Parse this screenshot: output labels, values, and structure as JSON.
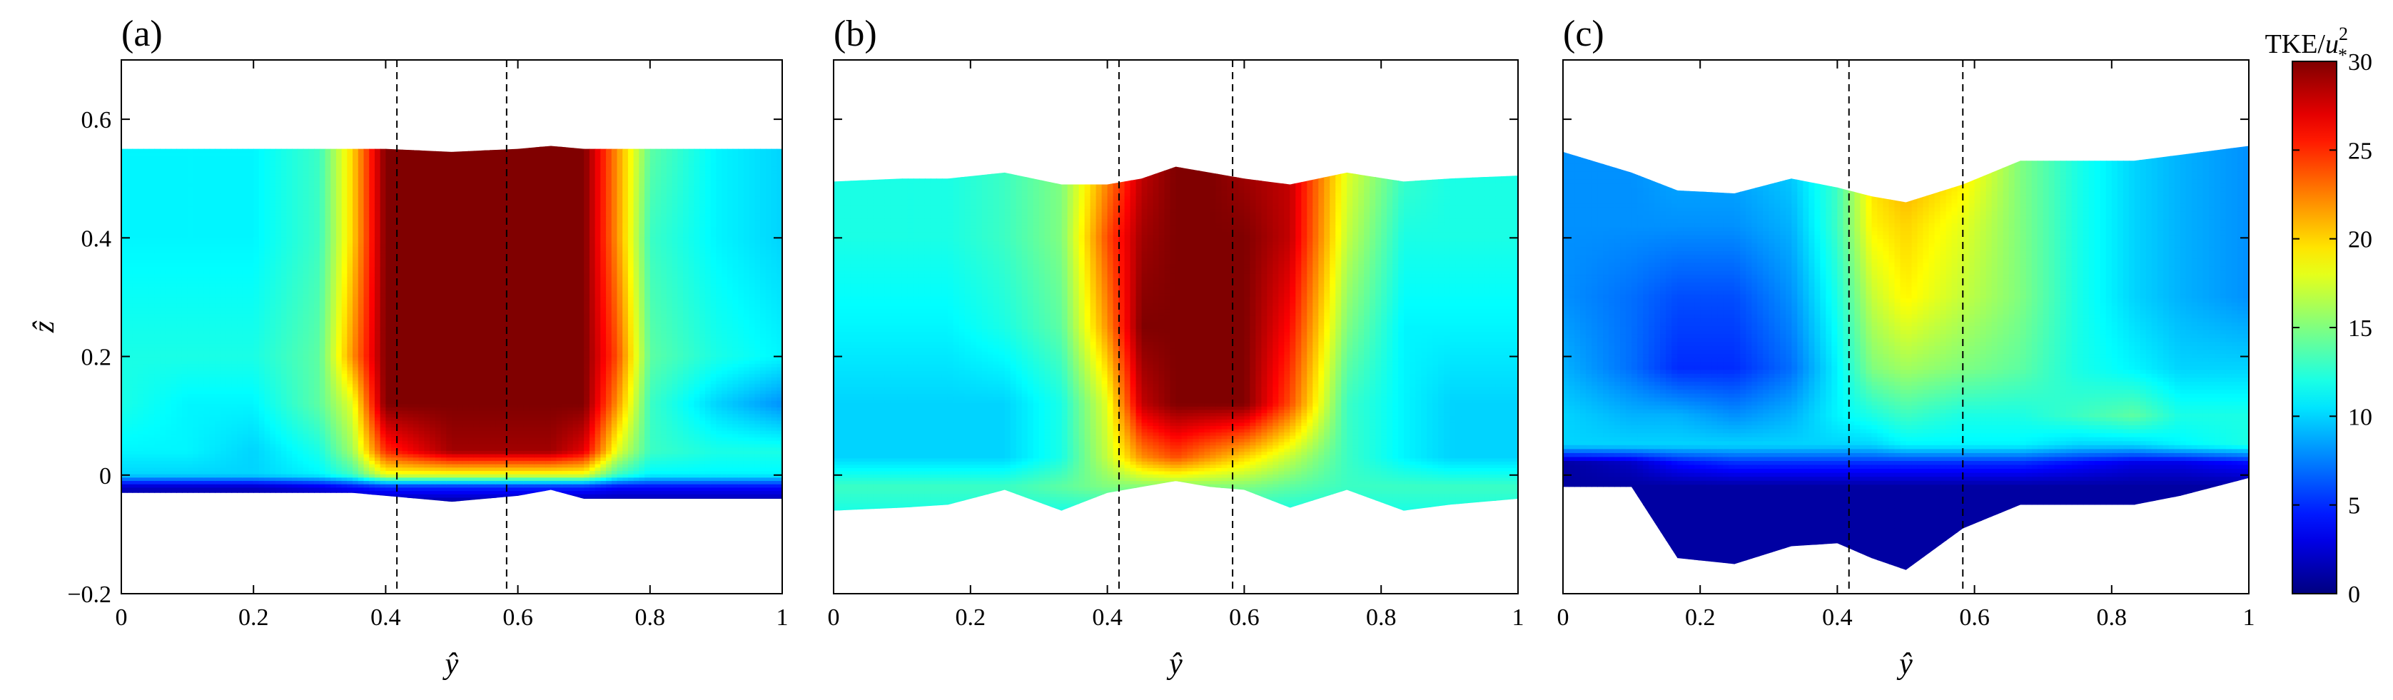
{
  "colorbar": {
    "label": "TKE/",
    "label_var": "u",
    "label_sup": "2",
    "label_sub": "*",
    "min": 0,
    "max": 30,
    "ticks": [
      "0",
      "5",
      "10",
      "15",
      "20",
      "25",
      "30"
    ]
  },
  "chart_data": [
    {
      "type": "heatmap",
      "panel": "(a)",
      "xlabel": "ŷ",
      "ylabel": "ẑ",
      "xlim": [
        0,
        1
      ],
      "ylim": [
        -0.2,
        0.7
      ],
      "xticks": [
        "0",
        "0.2",
        "0.4",
        "0.6",
        "0.8",
        "1"
      ],
      "yticks": [
        "−0.2",
        "0",
        "0.2",
        "0.4",
        "0.6"
      ],
      "dashed_lines_x": [
        0.417,
        0.583
      ],
      "x": [
        0,
        0.1,
        0.2,
        0.3,
        0.35,
        0.4,
        0.5,
        0.6,
        0.65,
        0.7,
        0.75,
        0.8,
        0.9,
        1.0
      ],
      "top": [
        0.55,
        0.55,
        0.55,
        0.55,
        0.55,
        0.55,
        0.545,
        0.55,
        0.555,
        0.55,
        0.55,
        0.55,
        0.55,
        0.55
      ],
      "bottom": [
        -0.03,
        -0.03,
        -0.03,
        -0.03,
        -0.03,
        -0.035,
        -0.045,
        -0.035,
        -0.025,
        -0.04,
        -0.04,
        -0.04,
        -0.04,
        -0.04
      ],
      "rows": [
        {
          "z": 0.55,
          "values": [
            11,
            11,
            11,
            13,
            20,
            30,
            30,
            30,
            30,
            30,
            22,
            14,
            11,
            10
          ]
        },
        {
          "z": 0.4,
          "values": [
            11,
            11,
            11,
            13,
            20,
            30,
            30,
            30,
            30,
            30,
            22,
            13,
            11,
            10
          ]
        },
        {
          "z": 0.2,
          "values": [
            12,
            12,
            12,
            14,
            22,
            30,
            30,
            30,
            30,
            30,
            24,
            14,
            12,
            11
          ]
        },
        {
          "z": 0.12,
          "values": [
            12,
            11,
            11,
            14,
            18,
            30,
            30,
            30,
            30,
            30,
            22,
            13,
            10,
            8
          ]
        },
        {
          "z": 0.04,
          "values": [
            11,
            11,
            10,
            12,
            16,
            25,
            29,
            29,
            29,
            27,
            18,
            13,
            12,
            12
          ]
        },
        {
          "z": 0.0,
          "values": [
            10,
            10,
            10,
            11,
            13,
            18,
            18,
            18,
            18,
            18,
            13,
            11,
            11,
            11
          ]
        },
        {
          "z": -0.02,
          "values": [
            2,
            2,
            2,
            3,
            4,
            5,
            5,
            5,
            5,
            5,
            4,
            4,
            4,
            4
          ]
        },
        {
          "z": -0.045,
          "values": [
            1,
            1,
            1,
            1,
            1,
            1,
            1,
            1,
            1,
            1,
            1,
            1,
            1,
            1
          ]
        }
      ]
    },
    {
      "type": "heatmap",
      "panel": "(b)",
      "xlabel": "ŷ",
      "xlim": [
        0,
        1
      ],
      "ylim": [
        -0.2,
        0.7
      ],
      "xticks": [
        "0",
        "0.2",
        "0.4",
        "0.6",
        "0.8",
        "1"
      ],
      "dashed_lines_x": [
        0.417,
        0.583
      ],
      "x": [
        0,
        0.1,
        0.167,
        0.25,
        0.333,
        0.4,
        0.45,
        0.5,
        0.55,
        0.6,
        0.667,
        0.75,
        0.833,
        0.9,
        1.0
      ],
      "top": [
        0.495,
        0.5,
        0.5,
        0.51,
        0.49,
        0.49,
        0.5,
        0.52,
        0.51,
        0.5,
        0.49,
        0.51,
        0.495,
        0.5,
        0.505
      ],
      "bottom": [
        -0.06,
        -0.055,
        -0.05,
        -0.025,
        -0.06,
        -0.03,
        -0.02,
        -0.01,
        -0.02,
        -0.025,
        -0.055,
        -0.025,
        -0.06,
        -0.05,
        -0.04
      ],
      "rows": [
        {
          "z": 0.52,
          "values": [
            12,
            12,
            12,
            13,
            15,
            22,
            28,
            30,
            30,
            29,
            28,
            18,
            13,
            12,
            12
          ]
        },
        {
          "z": 0.4,
          "values": [
            12,
            12,
            12,
            13,
            15,
            24,
            29,
            30,
            30,
            30,
            28,
            17,
            12,
            12,
            12
          ]
        },
        {
          "z": 0.25,
          "values": [
            11,
            11,
            11,
            12,
            14,
            22,
            30,
            30,
            30,
            30,
            26,
            15,
            11,
            11,
            11
          ]
        },
        {
          "z": 0.12,
          "values": [
            10,
            10,
            10,
            10,
            12,
            18,
            28,
            30,
            30,
            30,
            24,
            13,
            11,
            10,
            10
          ]
        },
        {
          "z": 0.03,
          "values": [
            10,
            10,
            10,
            10,
            12,
            17,
            22,
            24,
            22,
            20,
            17,
            13,
            11,
            10,
            10
          ]
        },
        {
          "z": -0.02,
          "values": [
            13,
            13,
            13,
            13,
            14,
            15,
            15,
            15,
            15,
            15,
            14,
            13,
            13,
            13,
            13
          ]
        },
        {
          "z": -0.06,
          "values": [
            12,
            12,
            12,
            12,
            12,
            12,
            12,
            12,
            12,
            12,
            12,
            12,
            12,
            12,
            12
          ]
        }
      ]
    },
    {
      "type": "heatmap",
      "panel": "(c)",
      "xlabel": "ŷ",
      "xlim": [
        0,
        1
      ],
      "ylim": [
        -0.2,
        0.7
      ],
      "xticks": [
        "0",
        "0.2",
        "0.4",
        "0.6",
        "0.8",
        "1"
      ],
      "dashed_lines_x": [
        0.417,
        0.583
      ],
      "x": [
        0,
        0.1,
        0.167,
        0.25,
        0.333,
        0.4,
        0.45,
        0.5,
        0.583,
        0.667,
        0.75,
        0.833,
        0.9,
        1.0
      ],
      "top": [
        0.545,
        0.51,
        0.48,
        0.475,
        0.5,
        0.485,
        0.47,
        0.46,
        0.49,
        0.53,
        0.53,
        0.53,
        0.54,
        0.555
      ],
      "bottom": [
        -0.02,
        -0.02,
        -0.14,
        -0.15,
        -0.12,
        -0.115,
        -0.14,
        -0.16,
        -0.09,
        -0.05,
        -0.05,
        -0.05,
        -0.035,
        -0.005
      ],
      "rows": [
        {
          "z": 0.55,
          "values": [
            8,
            8,
            9,
            9,
            10,
            13,
            20,
            22,
            20,
            15,
            12,
            10,
            9,
            8
          ]
        },
        {
          "z": 0.42,
          "values": [
            8,
            8,
            8,
            8,
            9,
            13,
            19,
            20,
            18,
            15,
            12,
            10,
            9,
            8
          ]
        },
        {
          "z": 0.3,
          "values": [
            8,
            7,
            6,
            6,
            8,
            12,
            17,
            19,
            17,
            15,
            12,
            10,
            9,
            8
          ]
        },
        {
          "z": 0.18,
          "values": [
            9,
            7,
            5,
            5,
            7,
            11,
            15,
            16,
            15,
            14,
            12,
            11,
            10,
            10
          ]
        },
        {
          "z": 0.1,
          "values": [
            10,
            9,
            9,
            8,
            9,
            11,
            12,
            13,
            12,
            12,
            13,
            14,
            12,
            12
          ]
        },
        {
          "z": 0.05,
          "values": [
            10,
            10,
            10,
            10,
            10,
            10,
            10,
            11,
            11,
            11,
            10,
            10,
            11,
            12
          ]
        },
        {
          "z": 0.02,
          "values": [
            1,
            2,
            4,
            5,
            5,
            5,
            5,
            5,
            5,
            5,
            4,
            3,
            3,
            4
          ]
        },
        {
          "z": -0.02,
          "values": [
            1,
            1,
            1,
            1,
            1,
            1,
            1,
            1,
            1,
            1,
            1,
            1,
            1,
            1
          ]
        },
        {
          "z": -0.16,
          "values": [
            1,
            1,
            1,
            1,
            1,
            1,
            1,
            1,
            1,
            1,
            1,
            1,
            1,
            1
          ]
        }
      ]
    }
  ]
}
